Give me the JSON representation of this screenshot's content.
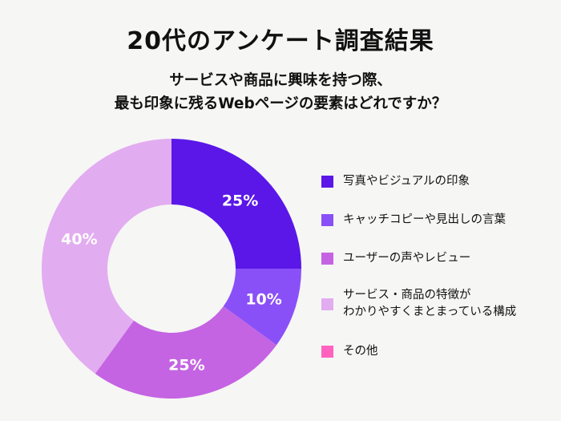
{
  "chart_data": {
    "type": "pie",
    "donut": true,
    "title": "20代のアンケート調査結果",
    "subtitle": [
      "サービスや商品に興味を持つ際、",
      "最も印象に残るWebページの要素はどれですか？"
    ],
    "categories": [
      "写真やビジュアルの印象",
      "キャッチコピーや見出しの言葉",
      "ユーザーの声やレビュー",
      "サービス・商品の特徴がわかりやすくまとまっている構成",
      "その他"
    ],
    "legend_labels": [
      [
        "写真やビジュアルの印象"
      ],
      [
        "キャッチコピーや見出しの言葉"
      ],
      [
        "ユーザーの声やレビュー"
      ],
      [
        "サービス・商品の特徴が",
        "わかりやすくまとまっている構成"
      ],
      [
        "その他"
      ]
    ],
    "values": [
      25,
      10,
      25,
      40,
      0
    ],
    "data_labels": [
      "25%",
      "10%",
      "25%",
      "40%",
      ""
    ],
    "colors": [
      "#5a17e8",
      "#8a50f8",
      "#c464e2",
      "#e2acf0",
      "#ff63bf"
    ],
    "legend_placement": "right",
    "start": "top",
    "direction": "clockwise"
  }
}
